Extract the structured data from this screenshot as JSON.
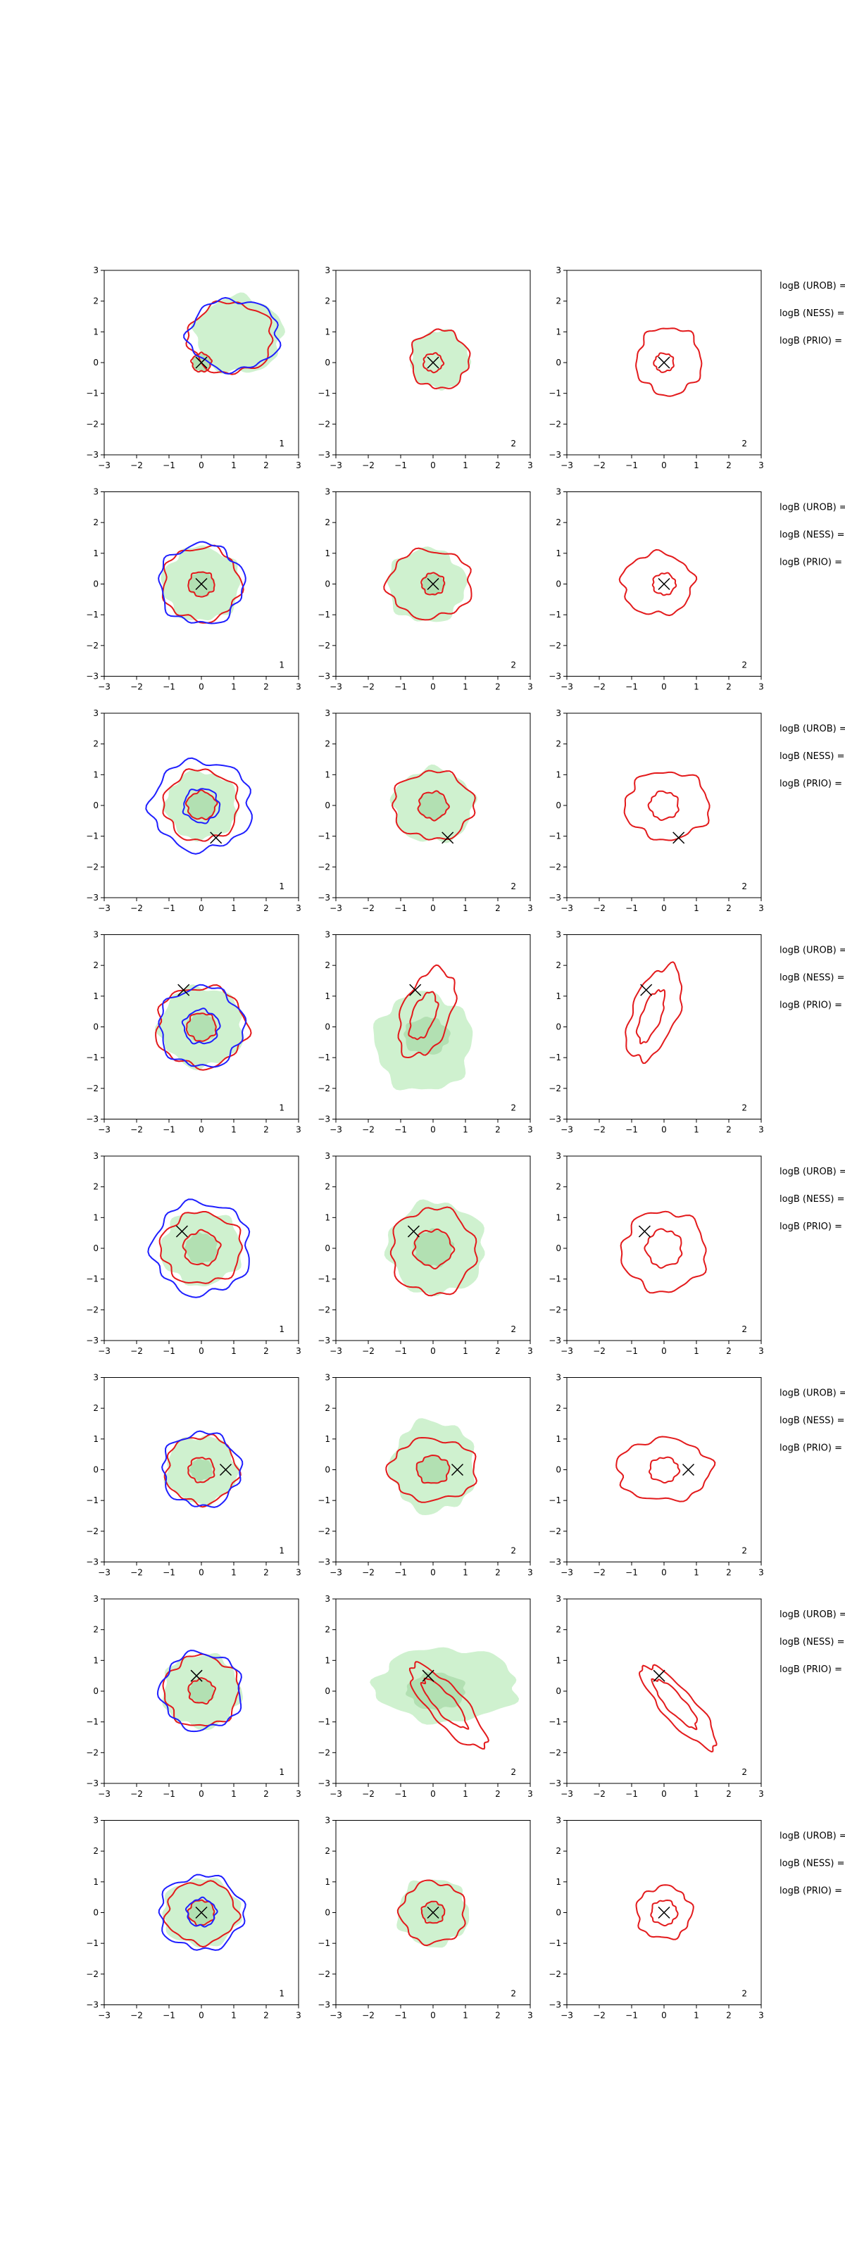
{
  "figure": {
    "colors": {
      "fill_outer": "#cff1cf",
      "fill_inner": "#b2e0b2",
      "red": "#e31a1c",
      "blue": "#1f1fff",
      "marker": "#000000",
      "axes": "#000000"
    },
    "side_labels": [
      "logB (UROB) =",
      "logB (NESS) =",
      "logB (PRIO) ="
    ]
  },
  "chart_data": {
    "type": "contour",
    "grid": false,
    "xlim": [
      -3,
      3
    ],
    "ylim": [
      -3,
      3
    ],
    "xticks": [
      -3,
      -2,
      -1,
      0,
      1,
      2,
      3
    ],
    "yticks": [
      -3,
      -2,
      -1,
      0,
      1,
      2,
      3
    ],
    "column_corner_labels": [
      "1",
      "2",
      "2"
    ],
    "rows": [
      {
        "marker": [
          0,
          0
        ],
        "panels": [
          {
            "fill": {
              "outer": [
                1.35,
                1.25,
                1.15,
                0.9
              ],
              "inner": [
                0.3,
                0.3,
                0,
                0
              ]
            },
            "contours": [
              {
                "color": "red",
                "radius": [
                  0.3,
                  0.3,
                  0,
                  0
                ]
              },
              {
                "color": "red",
                "radius": [
                  1.3,
                  1.15,
                  0.9,
                  0.8
                ]
              },
              {
                "color": "blue",
                "radius": [
                  1.4,
                  1.15,
                  1.0,
                  0.9
                ]
              }
            ]
          },
          {
            "fill": {
              "outer": [
                0.9,
                0.95,
                0.2,
                0.1
              ],
              "inner": null
            },
            "contours": [
              {
                "color": "red",
                "radius": [
                  0.3,
                  0.3,
                  0,
                  0
                ]
              },
              {
                "color": "red",
                "radius": [
                  0.9,
                  0.95,
                  0.2,
                  0.1
                ]
              }
            ]
          },
          {
            "fill": null,
            "contours": [
              {
                "color": "red",
                "radius": [
                  0.3,
                  0.3,
                  0,
                  0
                ]
              },
              {
                "color": "red",
                "radius": [
                  1.0,
                  1.1,
                  0.15,
                  0.05
                ]
              }
            ]
          }
        ]
      },
      {
        "marker": [
          0,
          0
        ],
        "panels": [
          {
            "fill": {
              "outer": [
                1.2,
                1.2,
                0,
                0
              ],
              "inner": [
                0.4,
                0.4,
                0,
                0
              ]
            },
            "contours": [
              {
                "color": "red",
                "radius": [
                  0.4,
                  0.4,
                  0,
                  0
                ]
              },
              {
                "color": "red",
                "radius": [
                  1.2,
                  1.2,
                  0,
                  0
                ]
              },
              {
                "color": "blue",
                "radius": [
                  1.3,
                  1.3,
                  0,
                  0
                ]
              }
            ]
          },
          {
            "fill": {
              "outer": [
                1.2,
                1.2,
                -0.2,
                -0.05
              ],
              "inner": [
                0.35,
                0.35,
                0,
                0
              ]
            },
            "contours": [
              {
                "color": "red",
                "radius": [
                  0.35,
                  0.35,
                  0,
                  0
                ]
              },
              {
                "color": "red",
                "radius": [
                  1.3,
                  1.1,
                  -0.1,
                  0
                ]
              }
            ]
          },
          {
            "fill": null,
            "contours": [
              {
                "color": "red",
                "radius": [
                  0.35,
                  0.35,
                  0,
                  0
                ]
              },
              {
                "color": "red",
                "radius": [
                  1.1,
                  1.0,
                  -0.2,
                  0
                ]
              }
            ]
          }
        ]
      },
      {
        "marker": [
          0.45,
          -1.05
        ],
        "panels": [
          {
            "fill": {
              "outer": [
                1.1,
                1.1,
                0,
                0
              ],
              "inner": [
                0.45,
                0.45,
                0,
                0
              ]
            },
            "contours": [
              {
                "color": "red",
                "radius": [
                  0.45,
                  0.45,
                  0,
                  0
                ]
              },
              {
                "color": "red",
                "radius": [
                  1.15,
                  1.15,
                  0,
                  0
                ]
              },
              {
                "color": "blue",
                "radius": [
                  1.55,
                  1.45,
                  0,
                  0
                ]
              },
              {
                "color": "blue",
                "radius": [
                  0.55,
                  0.55,
                  0,
                  0
                ]
              }
            ]
          },
          {
            "fill": {
              "outer": [
                1.25,
                1.2,
                0,
                0
              ],
              "inner": [
                0.45,
                0.45,
                0,
                0
              ]
            },
            "contours": [
              {
                "color": "red",
                "radius": [
                  0.45,
                  0.45,
                  0,
                  0
                ]
              },
              {
                "color": "red",
                "radius": [
                  1.25,
                  1.1,
                  0,
                  0
                ]
              }
            ]
          },
          {
            "fill": null,
            "contours": [
              {
                "color": "red",
                "radius": [
                  0.45,
                  0.45,
                  0,
                  0
                ]
              },
              {
                "color": "red",
                "radius": [
                  1.3,
                  1.1,
                  0.1,
                  0
                ]
              }
            ]
          }
        ]
      },
      {
        "marker": [
          -0.55,
          1.2
        ],
        "panels": [
          {
            "fill": {
              "outer": [
                1.3,
                1.3,
                0,
                0
              ],
              "inner": [
                0.45,
                0.45,
                0,
                0
              ]
            },
            "contours": [
              {
                "color": "red",
                "radius": [
                  0.45,
                  0.45,
                  0,
                  0
                ]
              },
              {
                "color": "red",
                "radius": [
                  1.4,
                  1.3,
                  0,
                  0
                ]
              },
              {
                "color": "blue",
                "radius": [
                  1.3,
                  1.3,
                  0,
                  0
                ]
              },
              {
                "color": "blue",
                "radius": [
                  0.55,
                  0.55,
                  0,
                  0
                ]
              }
            ]
          },
          {
            "fill": {
              "outer": [
                1.5,
                1.6,
                -0.3,
                -0.5
              ],
              "inner": [
                0.7,
                0.6,
                -0.2,
                -0.3
              ]
            },
            "contours": [
              {
                "color": "red",
                "radius": [
                  0.8,
                  0.35,
                  -0.3,
                  0.35
                ],
                "rotate": -20
              },
              {
                "color": "red",
                "radius": [
                  1.5,
                  0.75,
                  -0.2,
                  0.45
                ],
                "rotate": -20
              }
            ]
          },
          {
            "fill": null,
            "contours": [
              {
                "color": "red",
                "radius": [
                  0.9,
                  0.3,
                  -0.4,
                  0.35
                ],
                "rotate": -20
              },
              {
                "color": "red",
                "radius": [
                  1.6,
                  0.7,
                  -0.3,
                  0.45
                ],
                "rotate": -20
              }
            ]
          }
        ]
      },
      {
        "marker": [
          -0.6,
          0.55
        ],
        "panels": [
          {
            "fill": {
              "outer": [
                1.25,
                1.2,
                0,
                0
              ],
              "inner": [
                0.5,
                0.5,
                0,
                0
              ]
            },
            "contours": [
              {
                "color": "red",
                "radius": [
                  0.55,
                  0.55,
                  0,
                  0
                ]
              },
              {
                "color": "red",
                "radius": [
                  1.25,
                  1.15,
                  0,
                  0
                ]
              },
              {
                "color": "blue",
                "radius": [
                  1.5,
                  1.5,
                  0,
                  0
                ]
              }
            ]
          },
          {
            "fill": {
              "outer": [
                1.5,
                1.5,
                0.1,
                0
              ],
              "inner": [
                0.6,
                0.6,
                0,
                0
              ]
            },
            "contours": [
              {
                "color": "red",
                "radius": [
                  0.6,
                  0.6,
                  0,
                  0
                ]
              },
              {
                "color": "red",
                "radius": [
                  1.3,
                  1.4,
                  0,
                  -0.1
                ]
              }
            ]
          },
          {
            "fill": null,
            "contours": [
              {
                "color": "red",
                "radius": [
                  0.55,
                  0.6,
                  0,
                  0
                ]
              },
              {
                "color": "red",
                "radius": [
                  1.3,
                  1.3,
                  0,
                  -0.1
                ]
              }
            ]
          }
        ]
      },
      {
        "marker": [
          0.75,
          0
        ],
        "panels": [
          {
            "fill": {
              "outer": [
                1.1,
                1.1,
                0,
                0
              ],
              "inner": [
                0.35,
                0.35,
                0,
                0
              ]
            },
            "contours": [
              {
                "color": "red",
                "radius": [
                  0.4,
                  0.4,
                  0,
                  0
                ]
              },
              {
                "color": "red",
                "radius": [
                  1.1,
                  1.1,
                  0,
                  0
                ]
              },
              {
                "color": "blue",
                "radius": [
                  1.2,
                  1.2,
                  0,
                  0
                ]
              }
            ]
          },
          {
            "fill": {
              "outer": [
                1.3,
                1.5,
                0,
                0.1
              ],
              "inner": [
                0.5,
                0.45,
                0,
                0
              ]
            },
            "contours": [
              {
                "color": "red",
                "radius": [
                  0.5,
                  0.45,
                  0,
                  0
                ]
              },
              {
                "color": "red",
                "radius": [
                  1.35,
                  1.0,
                  0,
                  0
                ]
              }
            ]
          },
          {
            "fill": null,
            "contours": [
              {
                "color": "red",
                "radius": [
                  0.45,
                  0.4,
                  0,
                  0
                ]
              },
              {
                "color": "red",
                "radius": [
                  1.45,
                  1.0,
                  0,
                  0
                ]
              }
            ]
          }
        ]
      },
      {
        "marker": [
          -0.15,
          0.5
        ],
        "panels": [
          {
            "fill": {
              "outer": [
                1.2,
                1.2,
                0,
                0
              ],
              "inner": [
                0.4,
                0.4,
                0,
                0
              ]
            },
            "contours": [
              {
                "color": "red",
                "radius": [
                  0.4,
                  0.4,
                  0,
                  0
                ]
              },
              {
                "color": "red",
                "radius": [
                  1.15,
                  1.15,
                  0,
                  0
                ]
              },
              {
                "color": "blue",
                "radius": [
                  1.25,
                  1.25,
                  0,
                  0
                ]
              }
            ]
          },
          {
            "fill": {
              "outer": [
                2.2,
                1.2,
                0.4,
                0.2
              ],
              "inner": [
                0.9,
                0.6,
                0.1,
                0
              ]
            },
            "contours": [
              {
                "color": "red",
                "radius": [
                  1.0,
                  0.3,
                  0.35,
                  -0.4
                ],
                "rotate": 40
              },
              {
                "color": "red",
                "radius": [
                  1.7,
                  0.55,
                  0.45,
                  -0.5
                ],
                "rotate": 40
              }
            ]
          },
          {
            "fill": null,
            "contours": [
              {
                "color": "red",
                "radius": [
                  1.0,
                  0.28,
                  0.35,
                  -0.4
                ],
                "rotate": 40
              },
              {
                "color": "red",
                "radius": [
                  1.7,
                  0.5,
                  0.45,
                  -0.5
                ],
                "rotate": 40
              }
            ]
          }
        ]
      },
      {
        "marker": [
          0,
          0
        ],
        "panels": [
          {
            "fill": {
              "outer": [
                1.2,
                1.1,
                0,
                0
              ],
              "inner": [
                0.4,
                0.4,
                0,
                0
              ]
            },
            "contours": [
              {
                "color": "red",
                "radius": [
                  0.4,
                  0.4,
                  0,
                  0
                ]
              },
              {
                "color": "red",
                "radius": [
                  1.1,
                  1.0,
                  0,
                  0
                ]
              },
              {
                "color": "blue",
                "radius": [
                  1.3,
                  1.2,
                  0,
                  0
                ]
              },
              {
                "color": "blue",
                "radius": [
                  0.45,
                  0.45,
                  0,
                  0
                ]
              }
            ]
          },
          {
            "fill": {
              "outer": [
                1.1,
                1.1,
                0,
                0
              ],
              "inner": [
                0.35,
                0.35,
                0,
                0
              ]
            },
            "contours": [
              {
                "color": "red",
                "radius": [
                  0.35,
                  0.35,
                  0,
                  0
                ]
              },
              {
                "color": "red",
                "radius": [
                  1.0,
                  1.0,
                  0,
                  0
                ]
              }
            ]
          },
          {
            "fill": null,
            "contours": [
              {
                "color": "red",
                "radius": [
                  0.4,
                  0.4,
                  0,
                  0
                ]
              },
              {
                "color": "red",
                "radius": [
                  0.85,
                  0.85,
                  0,
                  0
                ]
              }
            ]
          }
        ]
      }
    ]
  }
}
